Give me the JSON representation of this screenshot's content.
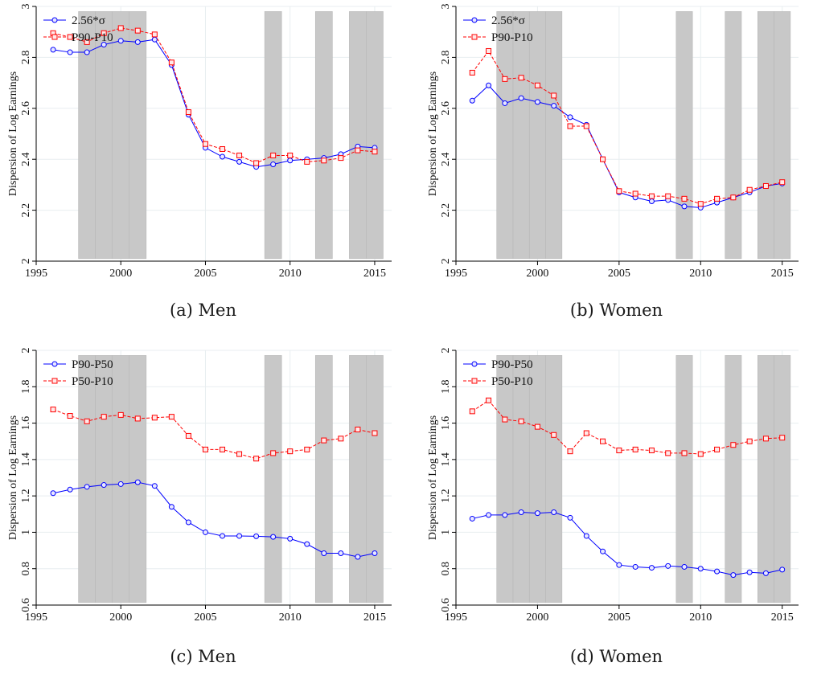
{
  "colors": {
    "blue": "#0000ff",
    "red": "#ff0000",
    "recession": "#c8c8c8",
    "grid": "#e8eef0",
    "background": "#ffffff"
  },
  "chart_data": [
    {
      "type": "line",
      "caption": "(a) Men",
      "ylabel": "Dispersion of Log Earnings",
      "xlim": [
        1995,
        2016
      ],
      "ylim": [
        2,
        3
      ],
      "xticks": [
        1995,
        2000,
        2005,
        2010,
        2015
      ],
      "yticks": [
        2,
        2.2,
        2.4,
        2.6,
        2.8,
        3
      ],
      "ytick_labels": [
        "2",
        "2.2",
        "2.4",
        "2.6",
        "2.8",
        "3"
      ],
      "legend_position": "top-left",
      "grid": true,
      "shaded_periods": [
        [
          1997.5,
          1998.5
        ],
        [
          1998.5,
          1999.5
        ],
        [
          1999.5,
          2000.5
        ],
        [
          2000.5,
          2001.5
        ],
        [
          2008.5,
          2009.5
        ],
        [
          2011.5,
          2012.5
        ],
        [
          2013.5,
          2014.5
        ],
        [
          2014.5,
          2015.5
        ]
      ],
      "x": [
        1996,
        1997,
        1998,
        1999,
        2000,
        2001,
        2002,
        2003,
        2004,
        2005,
        2006,
        2007,
        2008,
        2009,
        2010,
        2011,
        2012,
        2013,
        2014,
        2015
      ],
      "series": [
        {
          "name": "2.56*σ",
          "marker": "circle",
          "color": "#0000ff",
          "dash": false,
          "values": [
            2.83,
            2.82,
            2.82,
            2.85,
            2.865,
            2.86,
            2.87,
            2.77,
            2.575,
            2.445,
            2.41,
            2.39,
            2.37,
            2.38,
            2.395,
            2.4,
            2.405,
            2.42,
            2.45,
            2.445
          ]
        },
        {
          "name": "P90-P10",
          "marker": "square",
          "color": "#ff0000",
          "dash": true,
          "values": [
            2.895,
            2.88,
            2.86,
            2.895,
            2.915,
            2.905,
            2.89,
            2.78,
            2.585,
            2.46,
            2.44,
            2.415,
            2.385,
            2.415,
            2.415,
            2.39,
            2.395,
            2.405,
            2.435,
            2.43
          ]
        }
      ]
    },
    {
      "type": "line",
      "caption": "(b) Women",
      "ylabel": "Dispersion of Log Earnings",
      "xlim": [
        1995,
        2016
      ],
      "ylim": [
        2,
        3
      ],
      "xticks": [
        1995,
        2000,
        2005,
        2010,
        2015
      ],
      "yticks": [
        2,
        2.2,
        2.4,
        2.6,
        2.8,
        3
      ],
      "ytick_labels": [
        "2",
        "2.2",
        "2.4",
        "2.6",
        "2.8",
        "3"
      ],
      "legend_position": "top-left",
      "grid": true,
      "shaded_periods": [
        [
          1997.5,
          1998.5
        ],
        [
          1998.5,
          1999.5
        ],
        [
          1999.5,
          2000.5
        ],
        [
          2000.5,
          2001.5
        ],
        [
          2008.5,
          2009.5
        ],
        [
          2011.5,
          2012.5
        ],
        [
          2013.5,
          2014.5
        ],
        [
          2014.5,
          2015.5
        ]
      ],
      "x": [
        1996,
        1997,
        1998,
        1999,
        2000,
        2001,
        2002,
        2003,
        2004,
        2005,
        2006,
        2007,
        2008,
        2009,
        2010,
        2011,
        2012,
        2013,
        2014,
        2015
      ],
      "series": [
        {
          "name": "2.56*σ",
          "marker": "circle",
          "color": "#0000ff",
          "dash": false,
          "values": [
            2.63,
            2.69,
            2.62,
            2.64,
            2.625,
            2.61,
            2.565,
            2.535,
            2.4,
            2.27,
            2.25,
            2.235,
            2.24,
            2.215,
            2.21,
            2.23,
            2.25,
            2.27,
            2.295,
            2.305
          ]
        },
        {
          "name": "P90-P10",
          "marker": "square",
          "color": "#ff0000",
          "dash": true,
          "values": [
            2.74,
            2.825,
            2.715,
            2.72,
            2.69,
            2.65,
            2.53,
            2.53,
            2.4,
            2.275,
            2.265,
            2.255,
            2.255,
            2.245,
            2.225,
            2.245,
            2.25,
            2.28,
            2.295,
            2.31
          ]
        }
      ]
    },
    {
      "type": "line",
      "caption": "(c) Men",
      "ylabel": "Dispersion of Log Earnings",
      "xlim": [
        1995,
        2016
      ],
      "ylim": [
        0.6,
        2
      ],
      "xticks": [
        1995,
        2000,
        2005,
        2010,
        2015
      ],
      "yticks": [
        0.6,
        0.8,
        1,
        1.2,
        1.4,
        1.6,
        1.8,
        2
      ],
      "ytick_labels": [
        "0.6",
        "0.8",
        "1",
        "1.2",
        "1.4",
        "1.6",
        "1.8",
        "2"
      ],
      "legend_position": "top-left",
      "grid": true,
      "shaded_periods": [
        [
          1997.5,
          1998.5
        ],
        [
          1998.5,
          1999.5
        ],
        [
          1999.5,
          2000.5
        ],
        [
          2000.5,
          2001.5
        ],
        [
          2008.5,
          2009.5
        ],
        [
          2011.5,
          2012.5
        ],
        [
          2013.5,
          2014.5
        ],
        [
          2014.5,
          2015.5
        ]
      ],
      "x": [
        1996,
        1997,
        1998,
        1999,
        2000,
        2001,
        2002,
        2003,
        2004,
        2005,
        2006,
        2007,
        2008,
        2009,
        2010,
        2011,
        2012,
        2013,
        2014,
        2015
      ],
      "series": [
        {
          "name": "P90-P50",
          "marker": "circle",
          "color": "#0000ff",
          "dash": false,
          "values": [
            1.215,
            1.235,
            1.25,
            1.26,
            1.265,
            1.275,
            1.255,
            1.14,
            1.055,
            1.0,
            0.98,
            0.98,
            0.978,
            0.975,
            0.965,
            0.935,
            0.885,
            0.885,
            0.865,
            0.885
          ]
        },
        {
          "name": "P50-P10",
          "marker": "square",
          "color": "#ff0000",
          "dash": true,
          "values": [
            1.675,
            1.64,
            1.61,
            1.635,
            1.645,
            1.625,
            1.63,
            1.635,
            1.53,
            1.455,
            1.455,
            1.43,
            1.405,
            1.435,
            1.445,
            1.455,
            1.505,
            1.515,
            1.565,
            1.545
          ]
        }
      ]
    },
    {
      "type": "line",
      "caption": "(d) Women",
      "ylabel": "Dispersion of Log Earnings",
      "xlim": [
        1995,
        2016
      ],
      "ylim": [
        0.6,
        2
      ],
      "xticks": [
        1995,
        2000,
        2005,
        2010,
        2015
      ],
      "yticks": [
        0.6,
        0.8,
        1,
        1.2,
        1.4,
        1.6,
        1.8,
        2
      ],
      "ytick_labels": [
        "0.6",
        "0.8",
        "1",
        "1.2",
        "1.4",
        "1.6",
        "1.8",
        "2"
      ],
      "legend_position": "top-left",
      "grid": true,
      "shaded_periods": [
        [
          1997.5,
          1998.5
        ],
        [
          1998.5,
          1999.5
        ],
        [
          1999.5,
          2000.5
        ],
        [
          2000.5,
          2001.5
        ],
        [
          2008.5,
          2009.5
        ],
        [
          2011.5,
          2012.5
        ],
        [
          2013.5,
          2014.5
        ],
        [
          2014.5,
          2015.5
        ]
      ],
      "x": [
        1996,
        1997,
        1998,
        1999,
        2000,
        2001,
        2002,
        2003,
        2004,
        2005,
        2006,
        2007,
        2008,
        2009,
        2010,
        2011,
        2012,
        2013,
        2014,
        2015
      ],
      "series": [
        {
          "name": "P90-P50",
          "marker": "circle",
          "color": "#0000ff",
          "dash": false,
          "values": [
            1.075,
            1.095,
            1.095,
            1.11,
            1.105,
            1.11,
            1.08,
            0.98,
            0.895,
            0.82,
            0.81,
            0.805,
            0.815,
            0.81,
            0.8,
            0.785,
            0.765,
            0.78,
            0.775,
            0.795
          ]
        },
        {
          "name": "P50-P10",
          "marker": "square",
          "color": "#ff0000",
          "dash": true,
          "values": [
            1.665,
            1.725,
            1.62,
            1.61,
            1.58,
            1.535,
            1.445,
            1.545,
            1.5,
            1.45,
            1.455,
            1.45,
            1.435,
            1.435,
            1.43,
            1.455,
            1.48,
            1.5,
            1.515,
            1.52
          ]
        }
      ]
    }
  ]
}
